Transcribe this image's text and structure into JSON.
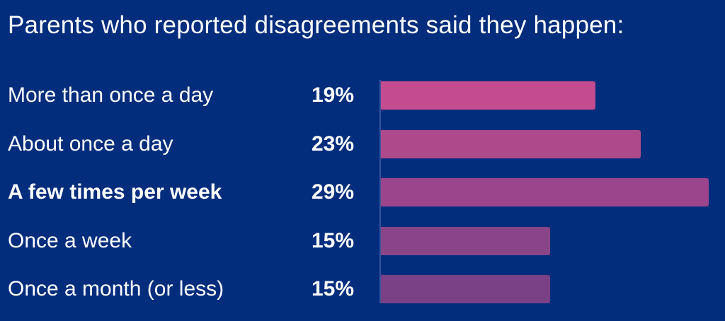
{
  "title": "Parents who reported disagreements said they happen:",
  "chart_data": {
    "type": "bar",
    "orientation": "horizontal",
    "title": "Parents who reported disagreements said they happen:",
    "categories": [
      "More than once a day",
      "About once a day",
      "A few times per week",
      "Once a week",
      "Once a month (or less)"
    ],
    "values": [
      19,
      23,
      29,
      15,
      15
    ],
    "value_labels": [
      "19%",
      "23%",
      "29%",
      "15%",
      "15%"
    ],
    "bold_category": "A few times per week",
    "xlim": [
      0,
      29
    ],
    "grid": false,
    "legend": "none",
    "colors": [
      "#c44b8e",
      "#ae4a8c",
      "#9b468c",
      "#8a4488",
      "#7a4186"
    ]
  }
}
